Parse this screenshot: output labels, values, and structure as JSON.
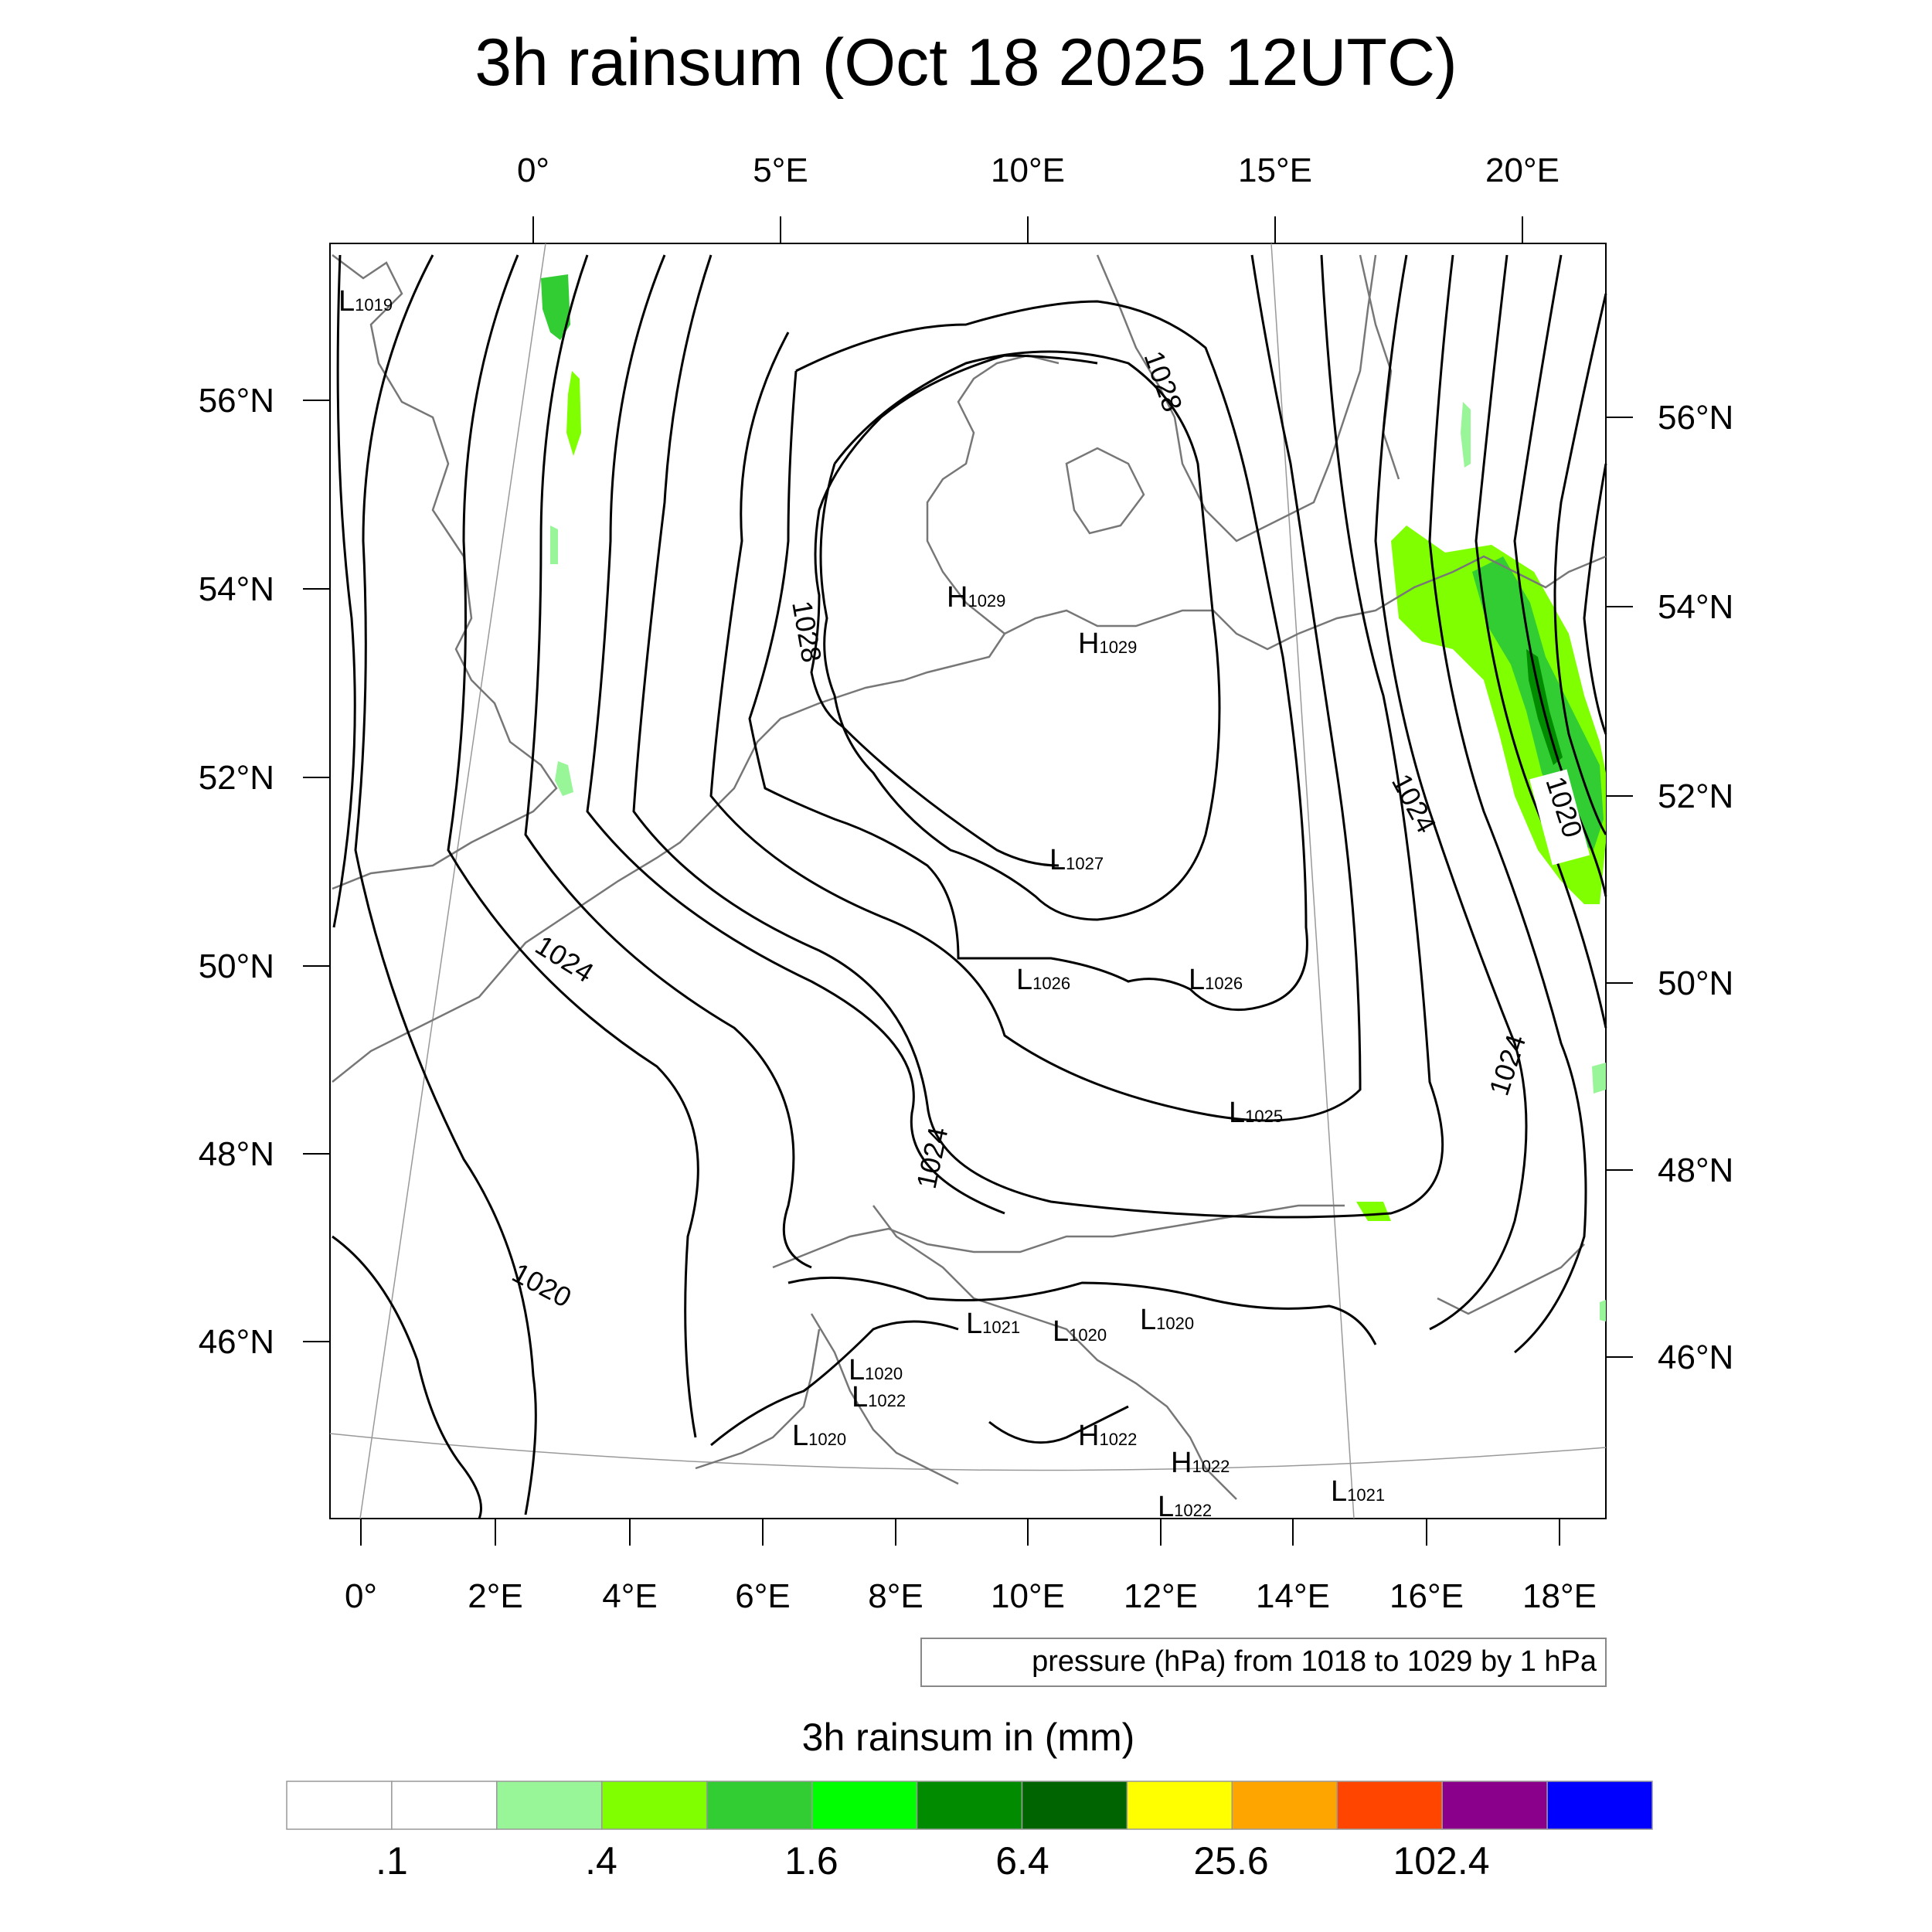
{
  "title": "3h rainsum (Oct 18 2025 12UTC)",
  "top_lon_labels": [
    "0°",
    "5°E",
    "10°E",
    "15°E",
    "20°E"
  ],
  "bottom_lon_labels": [
    "0°",
    "2°E",
    "4°E",
    "6°E",
    "8°E",
    "10°E",
    "12°E",
    "14°E",
    "16°E",
    "18°E"
  ],
  "left_lat_labels": [
    "56°N",
    "54°N",
    "52°N",
    "50°N",
    "48°N",
    "46°N"
  ],
  "right_lat_labels": [
    "56°N",
    "54°N",
    "52°N",
    "50°N",
    "48°N",
    "46°N"
  ],
  "contour_info": "pressure (hPa) from 1018 to 1029 by 1 hPa",
  "colorbar": {
    "title": "3h rainsum in (mm)",
    "tick_labels": [
      ".1",
      ".4",
      "1.6",
      "6.4",
      "25.6",
      "102.4"
    ],
    "colors": [
      "#ffffff",
      "#ffffff",
      "#98f598",
      "#80ff00",
      "#32cd32",
      "#00ff00",
      "#008b00",
      "#006400",
      "#ffff00",
      "#ffa500",
      "#ff4500",
      "#8b008b",
      "#0000ff"
    ]
  },
  "isobar_labels": [
    "1028",
    "1028",
    "1024",
    "1024",
    "1024",
    "1024",
    "1020",
    "1020"
  ],
  "pressure_centers": [
    {
      "type": "L",
      "value": "1019"
    },
    {
      "type": "H",
      "value": "1029"
    },
    {
      "type": "H",
      "value": "1029"
    },
    {
      "type": "L",
      "value": "1027"
    },
    {
      "type": "L",
      "value": "1026"
    },
    {
      "type": "L",
      "value": "1026"
    },
    {
      "type": "L",
      "value": "1025"
    },
    {
      "type": "L",
      "value": "1021"
    },
    {
      "type": "L",
      "value": "1020"
    },
    {
      "type": "L",
      "value": "1020"
    },
    {
      "type": "L",
      "value": "1020"
    },
    {
      "type": "L",
      "value": "1022"
    },
    {
      "type": "L",
      "value": "1020"
    },
    {
      "type": "H",
      "value": "1022"
    },
    {
      "type": "H",
      "value": "1022"
    },
    {
      "type": "L",
      "value": "1022"
    },
    {
      "type": "L",
      "value": "1021"
    }
  ]
}
